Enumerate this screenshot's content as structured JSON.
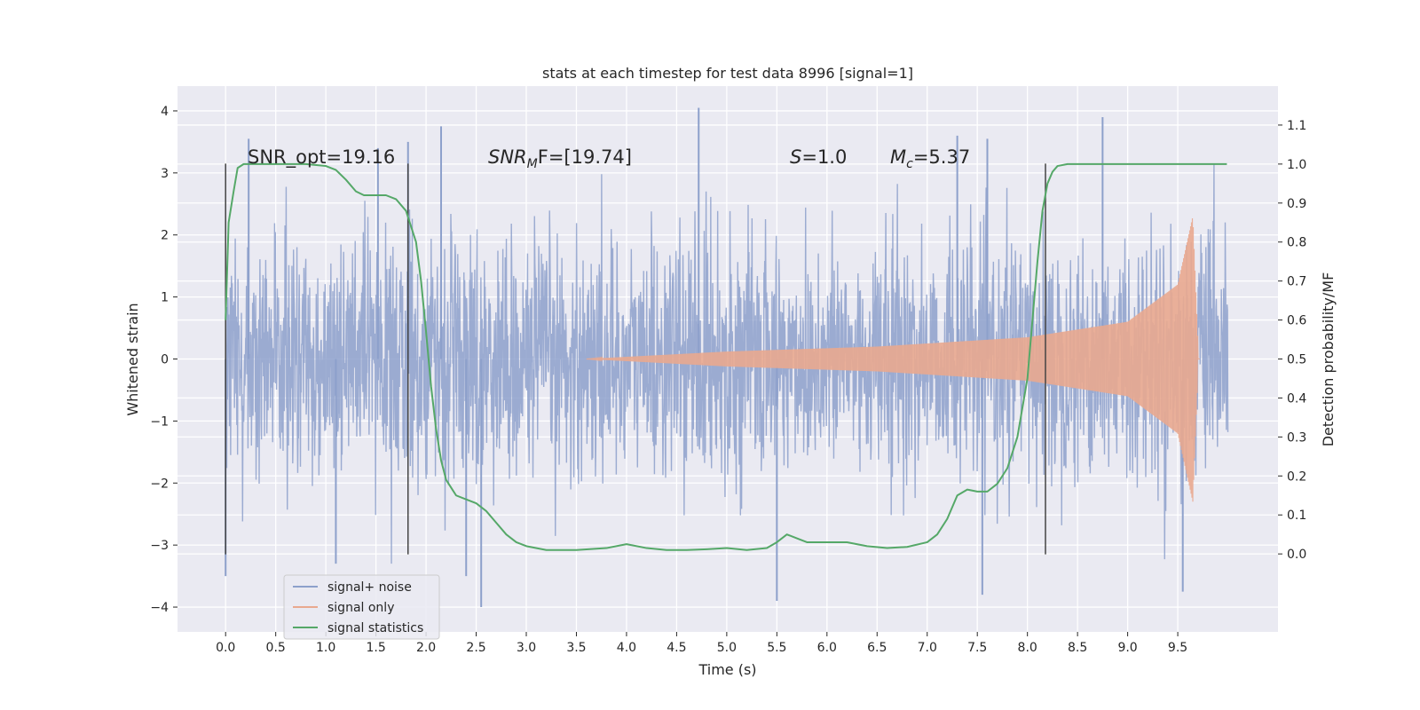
{
  "chart_data": {
    "type": "line",
    "title": "stats at each timestep for test data 8996 [signal=1]",
    "xlabel": "Time (s)",
    "ylabel_left": "Whitened strain",
    "ylabel_right": "Detection probability/MF",
    "xlim": [
      -0.48,
      10.5
    ],
    "ylim_left": [
      -4.4,
      4.4
    ],
    "ylim_right": [
      -0.2,
      1.2
    ],
    "x_ticks": [
      "0.0",
      "0.5",
      "1.0",
      "1.5",
      "2.0",
      "2.5",
      "3.0",
      "3.5",
      "4.0",
      "4.5",
      "5.0",
      "5.5",
      "6.0",
      "6.5",
      "7.0",
      "7.5",
      "8.0",
      "8.5",
      "9.0",
      "9.5"
    ],
    "x_tick_values": [
      0.0,
      0.5,
      1.0,
      1.5,
      2.0,
      2.5,
      3.0,
      3.5,
      4.0,
      4.5,
      5.0,
      5.5,
      6.0,
      6.5,
      7.0,
      7.5,
      8.0,
      8.5,
      9.0,
      9.5
    ],
    "y_ticks_left": [
      "4",
      "3",
      "2",
      "1",
      "0",
      "−1",
      "−2",
      "−3",
      "−4"
    ],
    "y_tick_values_left": [
      4,
      3,
      2,
      1,
      0,
      -1,
      -2,
      -3,
      -4
    ],
    "y_ticks_right": [
      "1.1",
      "1.0",
      "0.9",
      "0.8",
      "0.7",
      "0.6",
      "0.5",
      "0.4",
      "0.3",
      "0.2",
      "0.1",
      "0.0"
    ],
    "y_tick_values_right": [
      1.1,
      1.0,
      0.9,
      0.8,
      0.7,
      0.6,
      0.5,
      0.4,
      0.3,
      0.2,
      0.1,
      0.0
    ],
    "grid": true,
    "legend_position": "lower-left",
    "annotations": {
      "snr_opt": "SNR_opt=19.16",
      "snr_mf_prefix": "SNR",
      "snr_mf_sub": "M",
      "snr_mf_suffix": "F=[19.74]",
      "s_label": "S",
      "s_value": "=1.0",
      "mc_label": "M",
      "mc_sub": "c",
      "mc_value": "=5.37"
    },
    "vertical_markers_x": [
      0.0,
      1.82,
      8.18
    ],
    "vertical_markers_range": [
      -3.15,
      3.15
    ],
    "series": [
      {
        "name": "signal+ noise",
        "color": "#8da0cb",
        "axis": "left",
        "kind": "noise",
        "x_range": [
          0.0,
          10.0
        ],
        "envelope_typical": 1.3,
        "peak_points": [
          [
            0.23,
            3.55
          ],
          [
            1.52,
            3.4
          ],
          [
            1.82,
            3.5
          ],
          [
            2.15,
            3.75
          ],
          [
            4.72,
            4.05
          ],
          [
            7.3,
            3.6
          ],
          [
            7.6,
            3.55
          ],
          [
            8.75,
            3.9
          ],
          [
            0.0,
            -3.5
          ],
          [
            1.1,
            -3.3
          ],
          [
            2.4,
            -3.5
          ],
          [
            2.55,
            -4.0
          ],
          [
            5.5,
            -3.9
          ],
          [
            7.55,
            -3.8
          ],
          [
            9.55,
            -3.75
          ]
        ]
      },
      {
        "name": "signal only",
        "color": "#e9a98f",
        "axis": "left",
        "kind": "chirp",
        "x_range": [
          3.6,
          9.72
        ],
        "amplitude_at": [
          [
            3.6,
            0.0
          ],
          [
            5.0,
            0.12
          ],
          [
            6.5,
            0.2
          ],
          [
            8.0,
            0.35
          ],
          [
            9.0,
            0.6
          ],
          [
            9.5,
            1.2
          ],
          [
            9.65,
            2.3
          ],
          [
            9.7,
            0.3
          ]
        ]
      },
      {
        "name": "signal statistics",
        "color": "#55a868",
        "axis": "right",
        "kind": "line",
        "x": [
          0.0,
          0.03,
          0.08,
          0.12,
          0.18,
          0.25,
          0.4,
          0.6,
          0.8,
          1.0,
          1.1,
          1.2,
          1.3,
          1.38,
          1.45,
          1.5,
          1.6,
          1.7,
          1.8,
          1.9,
          1.95,
          2.0,
          2.05,
          2.1,
          2.15,
          2.2,
          2.25,
          2.3,
          2.4,
          2.5,
          2.6,
          2.7,
          2.8,
          2.9,
          3.0,
          3.2,
          3.5,
          3.8,
          4.0,
          4.2,
          4.4,
          4.6,
          4.8,
          5.0,
          5.2,
          5.4,
          5.5,
          5.6,
          5.7,
          5.8,
          6.0,
          6.2,
          6.4,
          6.6,
          6.8,
          7.0,
          7.1,
          7.2,
          7.3,
          7.4,
          7.5,
          7.6,
          7.7,
          7.8,
          7.9,
          8.0,
          8.05,
          8.1,
          8.15,
          8.2,
          8.25,
          8.3,
          8.4,
          8.6,
          9.0,
          9.5,
          9.99
        ],
        "y": [
          0.6,
          0.85,
          0.93,
          0.99,
          1.0,
          1.0,
          1.0,
          1.0,
          1.0,
          0.995,
          0.985,
          0.96,
          0.93,
          0.92,
          0.92,
          0.92,
          0.92,
          0.91,
          0.88,
          0.8,
          0.7,
          0.57,
          0.43,
          0.32,
          0.24,
          0.19,
          0.17,
          0.15,
          0.14,
          0.13,
          0.11,
          0.08,
          0.05,
          0.03,
          0.02,
          0.01,
          0.01,
          0.015,
          0.025,
          0.015,
          0.01,
          0.01,
          0.012,
          0.015,
          0.01,
          0.015,
          0.03,
          0.05,
          0.04,
          0.03,
          0.03,
          0.03,
          0.02,
          0.015,
          0.018,
          0.03,
          0.05,
          0.09,
          0.15,
          0.165,
          0.16,
          0.16,
          0.18,
          0.22,
          0.3,
          0.45,
          0.6,
          0.75,
          0.88,
          0.95,
          0.98,
          0.995,
          1.0,
          1.0,
          1.0,
          1.0,
          1.0
        ]
      }
    ]
  }
}
